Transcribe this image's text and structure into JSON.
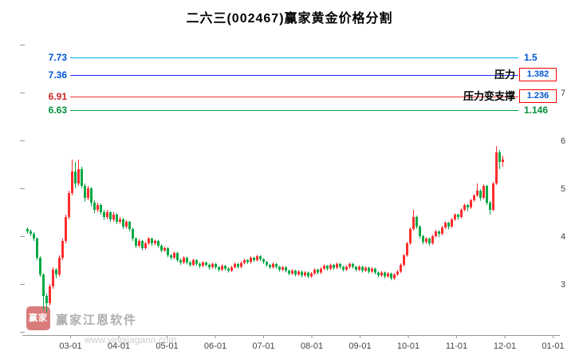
{
  "watermark": {
    "logo_text": "赢家",
    "brand": "赢家江恩软件",
    "url": "www.yingjiagann.com"
  },
  "chart_data": {
    "type": "candlestick",
    "title": "二六三(002467)赢家黄金价格分割",
    "x_tick_labels": [
      "03-01",
      "04-01",
      "05-01",
      "06-01",
      "07-01",
      "08-01",
      "09-01",
      "10-01",
      "11-01",
      "12-01",
      "01-01"
    ],
    "y_tick_labels": [
      "7",
      "6",
      "5",
      "4",
      "3"
    ],
    "y_range": [
      1.93,
      8.07
    ],
    "up_color": "#ff2d2d",
    "down_color": "#00a843",
    "axis_color": "#999999",
    "levels": [
      {
        "price": "7.73",
        "ratio": "1.5",
        "annotation": "",
        "boxed": false,
        "line_color": "#00b0f0",
        "label_color": "#0055d4",
        "ratio_color": "#0055d4"
      },
      {
        "price": "7.36",
        "ratio": "1.382",
        "annotation": "压力",
        "boxed": true,
        "line_color": "#2727ff",
        "label_color": "#0055d4",
        "ratio_color": "#0055d4"
      },
      {
        "price": "6.91",
        "ratio": "1.236",
        "annotation": "压力变支撑",
        "boxed": true,
        "line_color": "#e83535",
        "label_color": "#c62828",
        "ratio_color": "#0055d4"
      },
      {
        "price": "6.63",
        "ratio": "1.146",
        "annotation": "",
        "boxed": false,
        "line_color": "#00a14b",
        "label_color": "#00913a",
        "ratio_color": "#00913a"
      }
    ],
    "ohlc": [
      [
        4.15,
        4.18,
        4.05,
        4.1
      ],
      [
        4.1,
        4.14,
        4.0,
        4.05
      ],
      [
        4.05,
        4.08,
        3.9,
        3.95
      ],
      [
        3.95,
        3.98,
        3.5,
        3.55
      ],
      [
        3.55,
        3.58,
        3.15,
        3.2
      ],
      [
        3.2,
        3.22,
        2.45,
        2.75
      ],
      [
        2.75,
        2.8,
        2.4,
        2.6
      ],
      [
        2.6,
        3.0,
        2.55,
        2.95
      ],
      [
        2.95,
        3.35,
        2.9,
        3.3
      ],
      [
        3.3,
        3.33,
        3.12,
        3.2
      ],
      [
        3.2,
        3.6,
        3.15,
        3.55
      ],
      [
        3.55,
        3.95,
        3.5,
        3.9
      ],
      [
        3.9,
        4.45,
        3.85,
        4.4
      ],
      [
        4.4,
        4.95,
        4.35,
        4.9
      ],
      [
        4.9,
        5.6,
        4.85,
        5.35
      ],
      [
        5.35,
        5.55,
        5.0,
        5.1
      ],
      [
        5.1,
        5.6,
        5.05,
        5.4
      ],
      [
        5.4,
        5.45,
        5.0,
        5.05
      ],
      [
        5.05,
        5.1,
        4.72,
        4.8
      ],
      [
        4.8,
        5.05,
        4.75,
        5.0
      ],
      [
        5.0,
        5.02,
        4.62,
        4.7
      ],
      [
        4.7,
        4.75,
        4.48,
        4.55
      ],
      [
        4.55,
        4.7,
        4.5,
        4.65
      ],
      [
        4.65,
        4.68,
        4.44,
        4.5
      ],
      [
        4.5,
        4.55,
        4.34,
        4.4
      ],
      [
        4.4,
        4.55,
        4.35,
        4.5
      ],
      [
        4.5,
        4.52,
        4.3,
        4.35
      ],
      [
        4.35,
        4.5,
        4.3,
        4.45
      ],
      [
        4.45,
        4.48,
        4.25,
        4.3
      ],
      [
        4.3,
        4.4,
        4.26,
        4.35
      ],
      [
        4.35,
        4.38,
        4.15,
        4.2
      ],
      [
        4.2,
        4.34,
        4.16,
        4.3
      ],
      [
        4.3,
        4.32,
        4.1,
        4.15
      ],
      [
        4.15,
        4.17,
        3.9,
        3.95
      ],
      [
        3.95,
        3.98,
        3.75,
        3.8
      ],
      [
        3.8,
        3.94,
        3.76,
        3.9
      ],
      [
        3.9,
        3.92,
        3.7,
        3.75
      ],
      [
        3.75,
        3.88,
        3.72,
        3.85
      ],
      [
        3.85,
        3.98,
        3.82,
        3.95
      ],
      [
        3.95,
        3.97,
        3.8,
        3.85
      ],
      [
        3.85,
        3.93,
        3.81,
        3.9
      ],
      [
        3.9,
        3.92,
        3.76,
        3.8
      ],
      [
        3.8,
        3.83,
        3.66,
        3.7
      ],
      [
        3.7,
        3.78,
        3.67,
        3.75
      ],
      [
        3.75,
        3.77,
        3.56,
        3.6
      ],
      [
        3.6,
        3.63,
        3.5,
        3.55
      ],
      [
        3.55,
        3.68,
        3.52,
        3.65
      ],
      [
        3.65,
        3.67,
        3.46,
        3.5
      ],
      [
        3.5,
        3.53,
        3.4,
        3.45
      ],
      [
        3.45,
        3.58,
        3.42,
        3.55
      ],
      [
        3.55,
        3.57,
        3.41,
        3.45
      ],
      [
        3.45,
        3.48,
        3.36,
        3.4
      ],
      [
        3.4,
        3.53,
        3.38,
        3.5
      ],
      [
        3.5,
        3.52,
        3.38,
        3.42
      ],
      [
        3.42,
        3.45,
        3.33,
        3.38
      ],
      [
        3.38,
        3.48,
        3.35,
        3.45
      ],
      [
        3.45,
        3.47,
        3.36,
        3.4
      ],
      [
        3.4,
        3.43,
        3.3,
        3.35
      ],
      [
        3.35,
        3.45,
        3.32,
        3.42
      ],
      [
        3.42,
        3.44,
        3.31,
        3.35
      ],
      [
        3.35,
        3.38,
        3.26,
        3.3
      ],
      [
        3.3,
        3.41,
        3.27,
        3.38
      ],
      [
        3.38,
        3.4,
        3.28,
        3.32
      ],
      [
        3.32,
        3.35,
        3.24,
        3.28
      ],
      [
        3.28,
        3.38,
        3.25,
        3.35
      ],
      [
        3.35,
        3.45,
        3.32,
        3.42
      ],
      [
        3.42,
        3.44,
        3.32,
        3.36
      ],
      [
        3.36,
        3.47,
        3.33,
        3.44
      ],
      [
        3.44,
        3.53,
        3.41,
        3.5
      ],
      [
        3.5,
        3.52,
        3.42,
        3.46
      ],
      [
        3.46,
        3.58,
        3.43,
        3.55
      ],
      [
        3.55,
        3.57,
        3.46,
        3.5
      ],
      [
        3.5,
        3.61,
        3.47,
        3.58
      ],
      [
        3.58,
        3.6,
        3.48,
        3.52
      ],
      [
        3.52,
        3.54,
        3.42,
        3.46
      ],
      [
        3.46,
        3.48,
        3.36,
        3.4
      ],
      [
        3.4,
        3.42,
        3.31,
        3.35
      ],
      [
        3.35,
        3.45,
        3.32,
        3.42
      ],
      [
        3.42,
        3.44,
        3.32,
        3.36
      ],
      [
        3.36,
        3.38,
        3.26,
        3.3
      ],
      [
        3.3,
        3.38,
        3.27,
        3.35
      ],
      [
        3.35,
        3.37,
        3.24,
        3.28
      ],
      [
        3.28,
        3.3,
        3.18,
        3.22
      ],
      [
        3.22,
        3.31,
        3.19,
        3.28
      ],
      [
        3.28,
        3.3,
        3.16,
        3.2
      ],
      [
        3.2,
        3.29,
        3.17,
        3.26
      ],
      [
        3.26,
        3.28,
        3.14,
        3.18
      ],
      [
        3.18,
        3.27,
        3.15,
        3.24
      ],
      [
        3.24,
        3.26,
        3.12,
        3.16
      ],
      [
        3.16,
        3.25,
        3.13,
        3.22
      ],
      [
        3.22,
        3.33,
        3.19,
        3.3
      ],
      [
        3.3,
        3.32,
        3.2,
        3.24
      ],
      [
        3.24,
        3.35,
        3.21,
        3.32
      ],
      [
        3.32,
        3.41,
        3.29,
        3.38
      ],
      [
        3.38,
        3.4,
        3.28,
        3.32
      ],
      [
        3.32,
        3.43,
        3.29,
        3.4
      ],
      [
        3.4,
        3.42,
        3.3,
        3.34
      ],
      [
        3.34,
        3.45,
        3.31,
        3.42
      ],
      [
        3.42,
        3.44,
        3.32,
        3.36
      ],
      [
        3.36,
        3.38,
        3.26,
        3.3
      ],
      [
        3.3,
        3.39,
        3.27,
        3.36
      ],
      [
        3.36,
        3.45,
        3.33,
        3.42
      ],
      [
        3.42,
        3.44,
        3.32,
        3.36
      ],
      [
        3.36,
        3.38,
        3.26,
        3.3
      ],
      [
        3.3,
        3.39,
        3.27,
        3.36
      ],
      [
        3.36,
        3.38,
        3.24,
        3.28
      ],
      [
        3.28,
        3.37,
        3.25,
        3.34
      ],
      [
        3.34,
        3.36,
        3.22,
        3.26
      ],
      [
        3.26,
        3.35,
        3.23,
        3.32
      ],
      [
        3.32,
        3.34,
        3.2,
        3.24
      ],
      [
        3.24,
        3.26,
        3.14,
        3.18
      ],
      [
        3.18,
        3.27,
        3.15,
        3.24
      ],
      [
        3.24,
        3.26,
        3.12,
        3.16
      ],
      [
        3.16,
        3.25,
        3.13,
        3.22
      ],
      [
        3.22,
        3.24,
        3.08,
        3.12
      ],
      [
        3.12,
        3.23,
        3.09,
        3.2
      ],
      [
        3.2,
        3.29,
        3.17,
        3.26
      ],
      [
        3.26,
        3.43,
        3.23,
        3.4
      ],
      [
        3.4,
        3.63,
        3.37,
        3.6
      ],
      [
        3.6,
        3.88,
        3.57,
        3.85
      ],
      [
        3.85,
        4.18,
        3.82,
        4.15
      ],
      [
        4.15,
        4.55,
        4.12,
        4.4
      ],
      [
        4.4,
        4.43,
        4.15,
        4.2
      ],
      [
        4.2,
        4.23,
        3.95,
        4.0
      ],
      [
        4.0,
        4.03,
        3.83,
        3.88
      ],
      [
        3.88,
        3.98,
        3.84,
        3.95
      ],
      [
        3.95,
        3.97,
        3.8,
        3.85
      ],
      [
        3.85,
        4.03,
        3.82,
        4.0
      ],
      [
        4.0,
        4.13,
        3.97,
        4.1
      ],
      [
        4.1,
        4.12,
        3.98,
        4.05
      ],
      [
        4.05,
        4.21,
        4.02,
        4.18
      ],
      [
        4.18,
        4.31,
        4.15,
        4.28
      ],
      [
        4.28,
        4.3,
        4.14,
        4.2
      ],
      [
        4.2,
        4.38,
        4.17,
        4.35
      ],
      [
        4.35,
        4.48,
        4.32,
        4.45
      ],
      [
        4.45,
        4.47,
        4.34,
        4.4
      ],
      [
        4.4,
        4.58,
        4.37,
        4.55
      ],
      [
        4.55,
        4.68,
        4.52,
        4.65
      ],
      [
        4.65,
        4.67,
        4.52,
        4.6
      ],
      [
        4.6,
        4.78,
        4.57,
        4.75
      ],
      [
        4.75,
        4.88,
        4.72,
        4.85
      ],
      [
        4.85,
        5.1,
        4.82,
        4.95
      ],
      [
        4.95,
        4.98,
        4.74,
        4.8
      ],
      [
        4.8,
        5.08,
        4.77,
        5.05
      ],
      [
        5.05,
        5.07,
        4.65,
        4.7
      ],
      [
        4.7,
        4.73,
        4.45,
        4.55
      ],
      [
        4.55,
        5.13,
        4.52,
        5.1
      ],
      [
        5.1,
        5.88,
        5.07,
        5.75
      ],
      [
        5.75,
        5.8,
        5.4,
        5.55
      ],
      [
        5.55,
        5.68,
        5.45,
        5.6
      ]
    ]
  }
}
